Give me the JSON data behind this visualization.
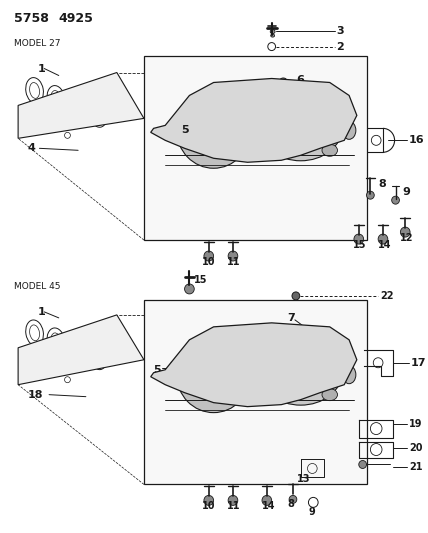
{
  "figsize": [
    4.28,
    5.33
  ],
  "dpi": 100,
  "bg": "#ffffff",
  "lc": "#1a1a1a",
  "tc": "#1a1a1a",
  "title1": "5758",
  "title2": "4925",
  "m1": "MODEL 27",
  "m2": "MODEL 45",
  "gray1": "#c8c8c8",
  "gray2": "#a0a0a0",
  "gray3": "#e0e0e0"
}
